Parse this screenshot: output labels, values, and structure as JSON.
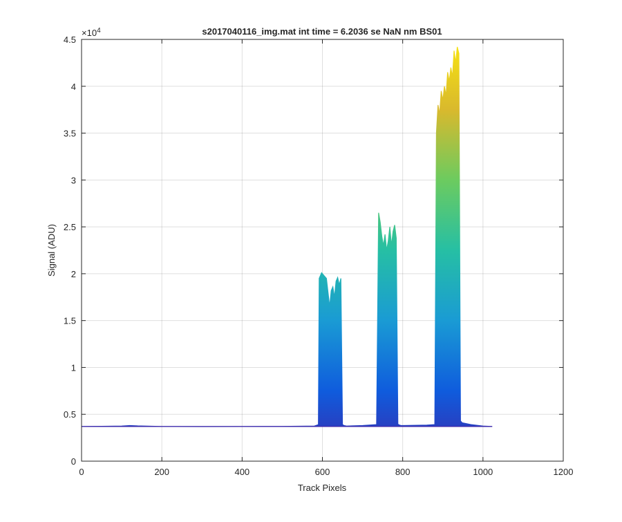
{
  "chart_data": {
    "type": "area",
    "title": "s2017040116_img.mat int time = 6.2036 se  NaN nm BS01",
    "xlabel": "Track Pixels",
    "ylabel": "Signal (ADU)",
    "xlim": [
      0,
      1200
    ],
    "ylim": [
      0,
      45000
    ],
    "x_ticks": [
      0,
      200,
      400,
      600,
      800,
      1000,
      1200
    ],
    "x_tick_labels": [
      "0",
      "200",
      "400",
      "600",
      "800",
      "1000",
      "1200"
    ],
    "y_ticks": [
      0,
      5000,
      10000,
      15000,
      20000,
      25000,
      30000,
      35000,
      40000,
      45000
    ],
    "y_tick_labels": [
      "0",
      "0.5",
      "1",
      "1.5",
      "2",
      "2.5",
      "3",
      "3.5",
      "4",
      "4.5"
    ],
    "y_exponent_label": "×10",
    "y_exponent_power": "4",
    "grid": true,
    "colormap": [
      "#3e26a8",
      "#0f5cdd",
      "#1a9bd4",
      "#26bfa4",
      "#6ccb5f",
      "#d9b92d",
      "#f9e60f"
    ],
    "baseline_value": 3700,
    "series": [
      {
        "x": [
          0,
          50,
          100,
          120,
          140,
          200,
          300,
          400,
          500,
          580,
          590,
          592,
          598,
          604,
          610,
          614,
          618,
          622,
          626,
          630,
          634,
          638,
          642,
          646,
          650,
          654,
          660,
          700,
          735,
          740,
          744,
          748,
          752,
          756,
          760,
          764,
          768,
          772,
          776,
          780,
          784,
          788,
          792,
          796,
          800,
          860,
          880,
          884,
          888,
          892,
          896,
          900,
          904,
          908,
          912,
          916,
          920,
          924,
          928,
          932,
          936,
          940,
          944,
          948,
          970,
          1000,
          1023
        ],
        "y": [
          3700,
          3720,
          3750,
          3800,
          3760,
          3700,
          3690,
          3700,
          3710,
          3750,
          3900,
          19500,
          20100,
          19800,
          19500,
          18000,
          16500,
          18200,
          18600,
          17500,
          19200,
          19600,
          18800,
          19500,
          3900,
          3800,
          3750,
          3800,
          3900,
          26500,
          25500,
          24000,
          23000,
          24200,
          22500,
          23500,
          25000,
          23000,
          24500,
          25200,
          23800,
          3950,
          3850,
          3800,
          3800,
          3850,
          3900,
          35000,
          38000,
          37000,
          39500,
          38500,
          40000,
          39000,
          41500,
          40500,
          42000,
          41000,
          43800,
          42500,
          44200,
          43500,
          4300,
          4100,
          3900,
          3750,
          3700
        ]
      }
    ]
  }
}
